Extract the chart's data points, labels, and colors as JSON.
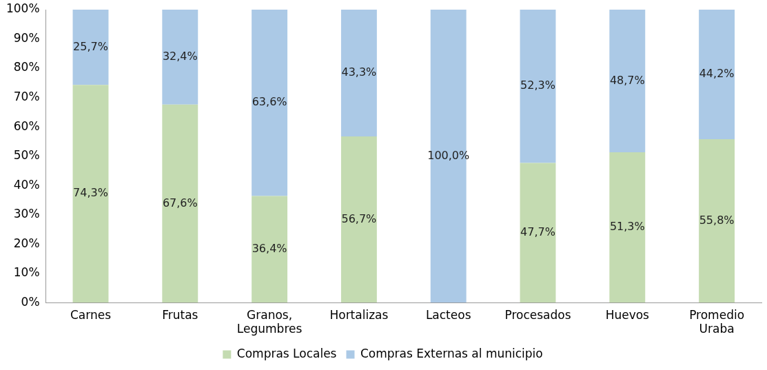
{
  "chart_data": {
    "type": "bar",
    "stacked": true,
    "categories": [
      "Carnes",
      "Frutas",
      "Granos, Legumbres",
      "Hortalizas",
      "Lacteos",
      "Procesados",
      "Huevos",
      "Promedio Uraba"
    ],
    "series": [
      {
        "name": "Compras Locales",
        "color": "#c4dbb1",
        "values": [
          74.3,
          67.6,
          36.4,
          56.7,
          0,
          47.7,
          51.3,
          55.8
        ],
        "value_labels": [
          "74,3%",
          "67,6%",
          "36,4%",
          "56,7%",
          null,
          "47,7%",
          "51,3%",
          "55,8%"
        ]
      },
      {
        "name": "Compras Externas al municipio",
        "color": "#abc9e6",
        "values": [
          25.7,
          32.4,
          63.6,
          43.3,
          100,
          52.3,
          48.7,
          44.2
        ],
        "value_labels": [
          "25,7%",
          "32,4%",
          "63,6%",
          "43,3%",
          "100,0%",
          "52,3%",
          "48,7%",
          "44,2%"
        ]
      }
    ],
    "ylim": [
      0,
      100
    ],
    "yticks": [
      {
        "value": 0,
        "label": "0%"
      },
      {
        "value": 10,
        "label": "10%"
      },
      {
        "value": 20,
        "label": "20%"
      },
      {
        "value": 30,
        "label": "30%"
      },
      {
        "value": 40,
        "label": "40%"
      },
      {
        "value": 50,
        "label": "50%"
      },
      {
        "value": 60,
        "label": "60%"
      },
      {
        "value": 70,
        "label": "70%"
      },
      {
        "value": 80,
        "label": "80%"
      },
      {
        "value": 90,
        "label": "90%"
      },
      {
        "value": 100,
        "label": "100%"
      }
    ],
    "grid": false,
    "legend": "bottom"
  }
}
